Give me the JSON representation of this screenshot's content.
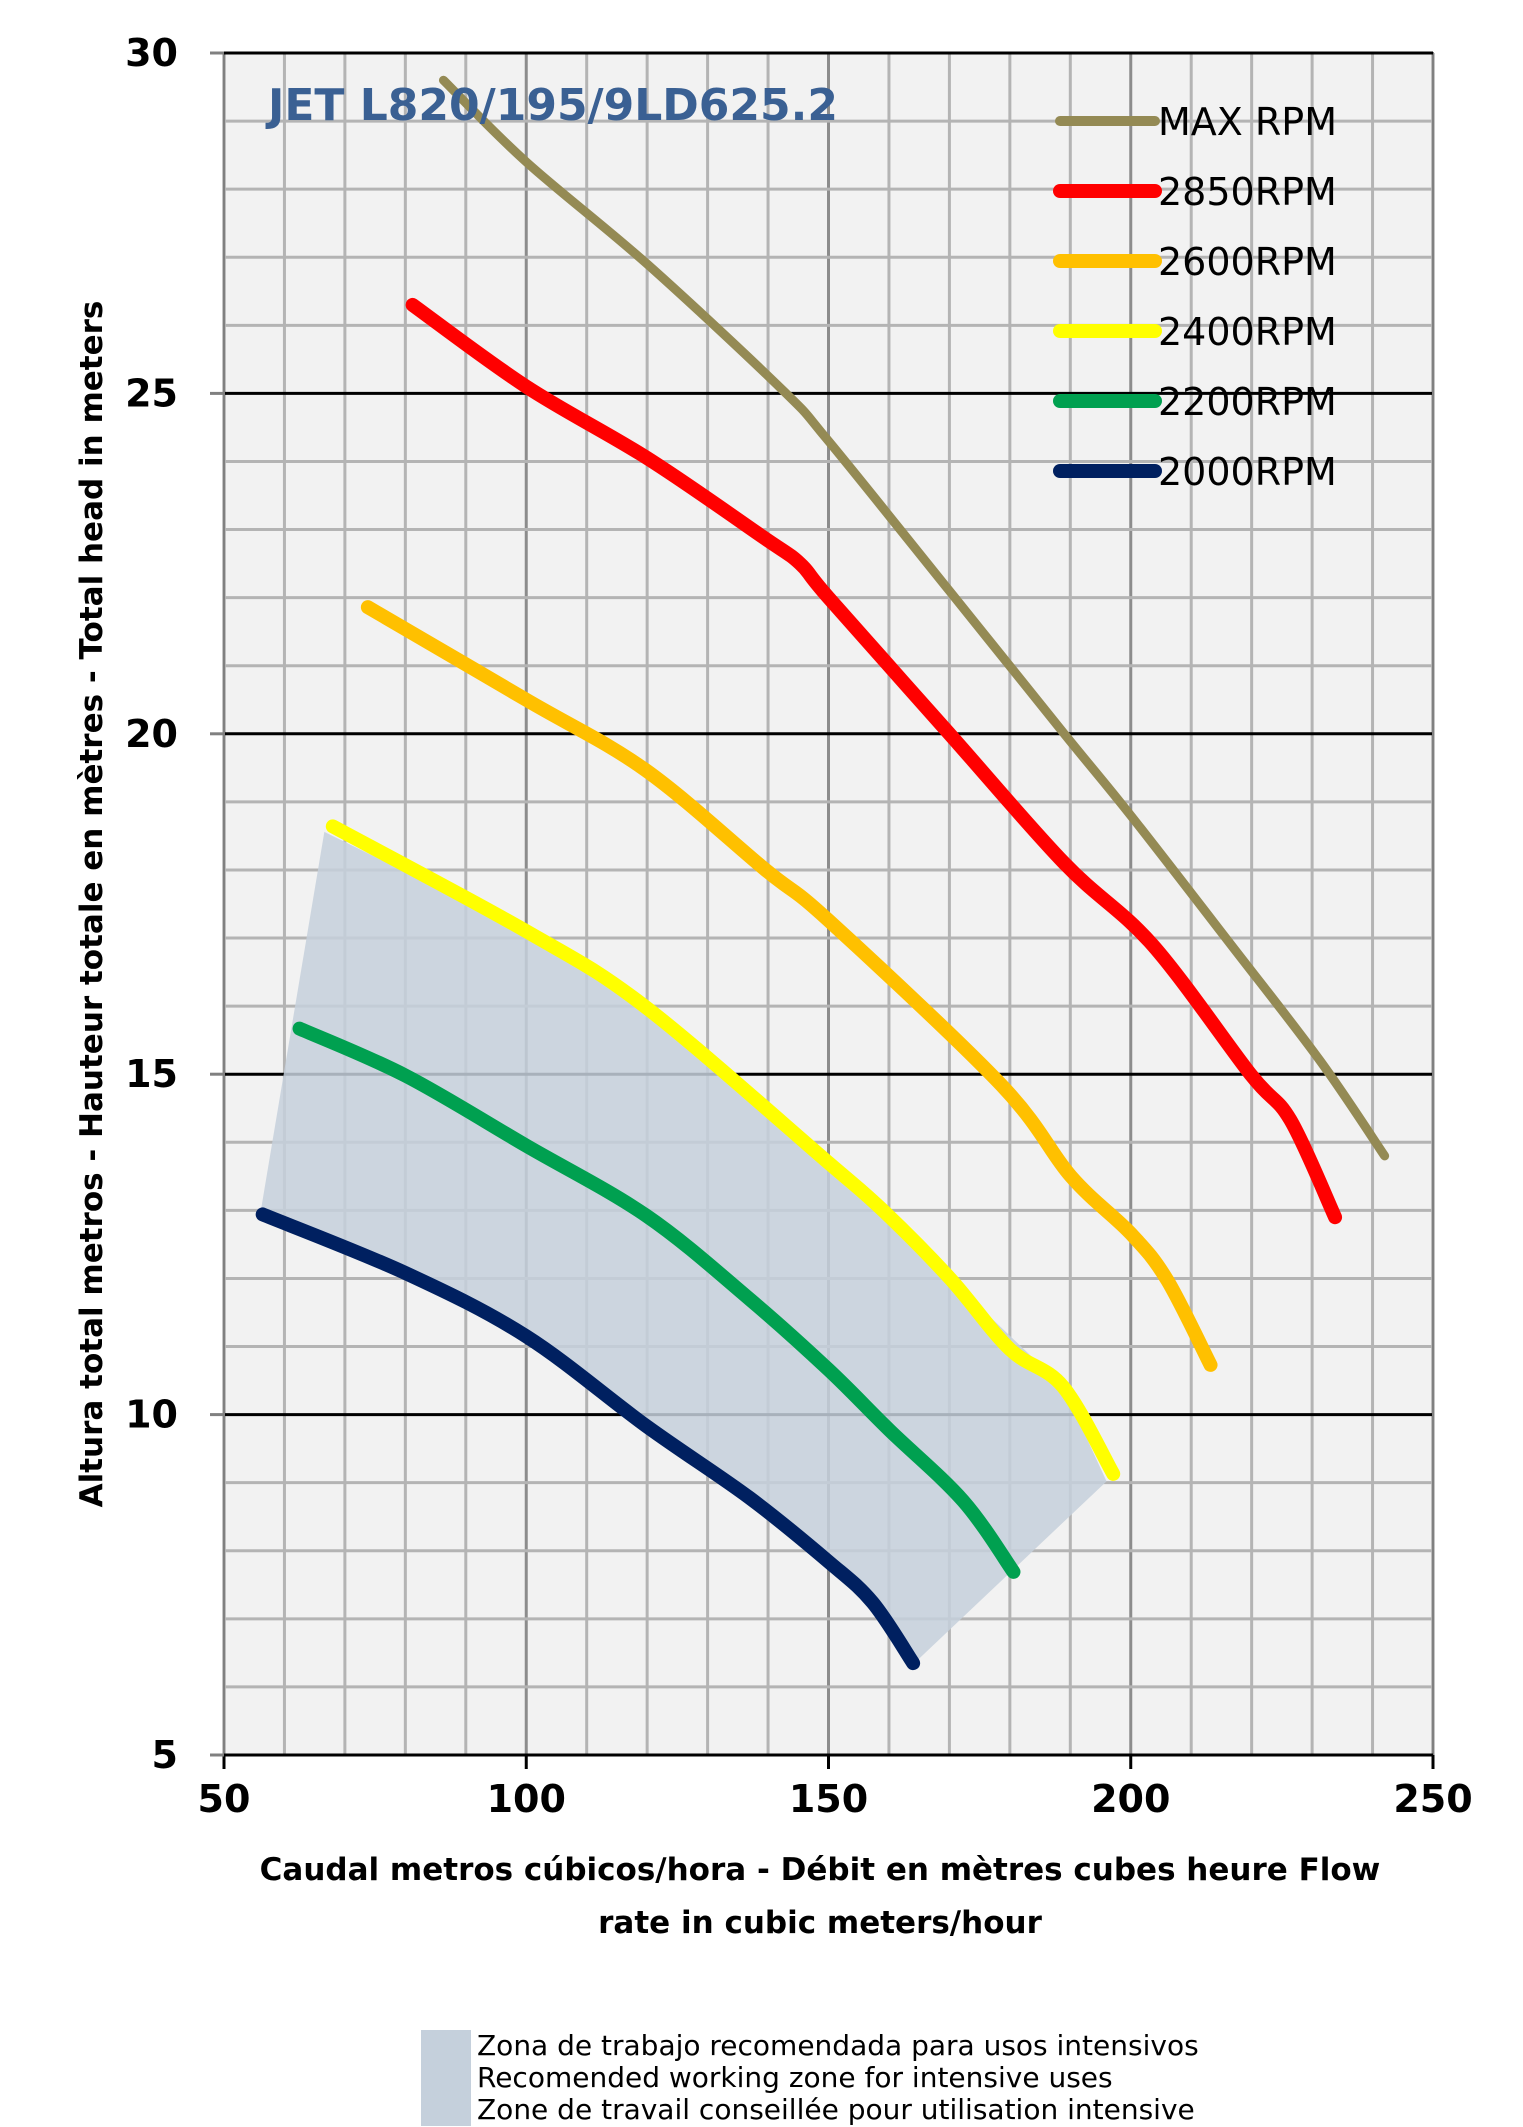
{
  "chart_data": {
    "type": "line",
    "title": "JET L820/195/9LD625.2",
    "xlabel": "Caudal metros cúbicos/hora - Débit en mètres cubes heure  Flow rate in cubic meters/hour",
    "ylabel": "Altura total metros - Hauteur totale en mètres - Total head in meters",
    "xlim": [
      50,
      250
    ],
    "ylim": [
      5,
      30
    ],
    "x_ticks": [
      "50",
      "100",
      "150",
      "200",
      "250"
    ],
    "y_ticks": [
      "5",
      "10",
      "15",
      "20",
      "25",
      "30"
    ],
    "grid": true,
    "legend_position": "top-right",
    "series": [
      {
        "name": "MAX RPM",
        "color": "#948a54",
        "points": [
          [
            86.3,
            29.6
          ],
          [
            100,
            28.4
          ],
          [
            120,
            26.9
          ],
          [
            142.4,
            25.05
          ],
          [
            150,
            24.3
          ],
          [
            170,
            22.1
          ],
          [
            189,
            20.0
          ],
          [
            200,
            18.8
          ],
          [
            216.6,
            16.9
          ],
          [
            231.3,
            15.2
          ],
          [
            242,
            13.8
          ]
        ]
      },
      {
        "name": "2850RPM",
        "color": "#ff0000",
        "points": [
          [
            81.2,
            26.3
          ],
          [
            100,
            25.1
          ],
          [
            120,
            24.05
          ],
          [
            139,
            22.9
          ],
          [
            145.3,
            22.5
          ],
          [
            150,
            22.0
          ],
          [
            170,
            20.0
          ],
          [
            189,
            18.1
          ],
          [
            203.6,
            16.9
          ],
          [
            219.8,
            15.0
          ],
          [
            226.4,
            14.33
          ],
          [
            233.8,
            12.9
          ]
        ]
      },
      {
        "name": "2600RPM",
        "color": "#ffc000",
        "points": [
          [
            73.8,
            21.86
          ],
          [
            100,
            20.5
          ],
          [
            119.7,
            19.47
          ],
          [
            139.6,
            18.0
          ],
          [
            150,
            17.26
          ],
          [
            178.6,
            14.84
          ],
          [
            190.1,
            13.5
          ],
          [
            200,
            12.66
          ],
          [
            206,
            11.98
          ],
          [
            213.2,
            10.73
          ]
        ]
      },
      {
        "name": "2400RPM",
        "color": "#ffff00",
        "points": [
          [
            68,
            18.64
          ],
          [
            100,
            17.1
          ],
          [
            119.7,
            15.99
          ],
          [
            149.6,
            13.73
          ],
          [
            159,
            13.0
          ],
          [
            170.1,
            12.0
          ],
          [
            180,
            10.96
          ],
          [
            188.8,
            10.41
          ],
          [
            197.1,
            9.13
          ]
        ]
      },
      {
        "name": "2200RPM",
        "color": "#00a050",
        "points": [
          [
            62.5,
            15.67
          ],
          [
            80,
            14.98
          ],
          [
            100,
            13.95
          ],
          [
            119.9,
            12.92
          ],
          [
            136.9,
            11.7
          ],
          [
            150,
            10.66
          ],
          [
            160.1,
            9.77
          ],
          [
            172.3,
            8.73
          ],
          [
            180.6,
            7.69
          ]
        ]
      },
      {
        "name": "2000RPM",
        "color": "#002060",
        "points": [
          [
            56.4,
            12.94
          ],
          [
            80,
            12.08
          ],
          [
            100,
            11.15
          ],
          [
            119.9,
            9.83
          ],
          [
            136.9,
            8.78
          ],
          [
            150,
            7.84
          ],
          [
            157.3,
            7.24
          ],
          [
            164,
            6.35
          ]
        ]
      }
    ],
    "recommended_zone": {
      "color": "#c5d0dc",
      "polygon": [
        [
          56.1,
          13.0
        ],
        [
          66.6,
          18.56
        ],
        [
          100,
          17.1
        ],
        [
          119.7,
          15.99
        ],
        [
          149.6,
          13.73
        ],
        [
          170.1,
          12.0
        ],
        [
          188.8,
          10.41
        ],
        [
          196,
          9.02
        ],
        [
          164.8,
          6.4
        ],
        [
          157.3,
          7.24
        ],
        [
          150,
          7.84
        ],
        [
          136.9,
          8.78
        ],
        [
          119.9,
          9.83
        ],
        [
          100,
          11.15
        ],
        [
          80,
          12.08
        ]
      ],
      "legend_lines": [
        "Zona de trabajo recomendada para usos intensivos",
        "Recomended working zone for intensive uses",
        "Zone de travail conseillée pour utilisation intensive"
      ]
    }
  }
}
